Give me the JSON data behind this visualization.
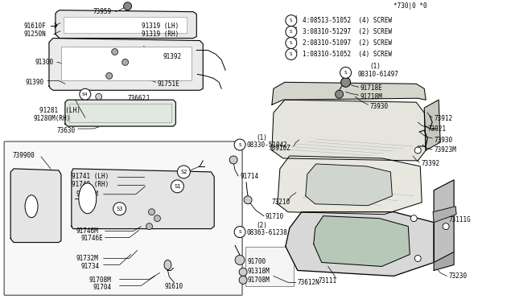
{
  "bg_color": "#ffffff",
  "line_color": "#000000",
  "text_color": "#000000",
  "fig_width": 6.4,
  "fig_height": 3.72,
  "dpi": 100,
  "parts_legend": [
    {
      "num": "1",
      "part": "08310-51052",
      "qty": "(4)",
      "type": "SCREW"
    },
    {
      "num": "2",
      "part": "08310-51097",
      "qty": "(2)",
      "type": "SCREW"
    },
    {
      "num": "3",
      "part": "08310-51297",
      "qty": "(2)",
      "type": "SCREW"
    },
    {
      "num": "4",
      "part": "08513-51052",
      "qty": "(4)",
      "type": "SCREW"
    }
  ],
  "footer": "*730|0 *0"
}
